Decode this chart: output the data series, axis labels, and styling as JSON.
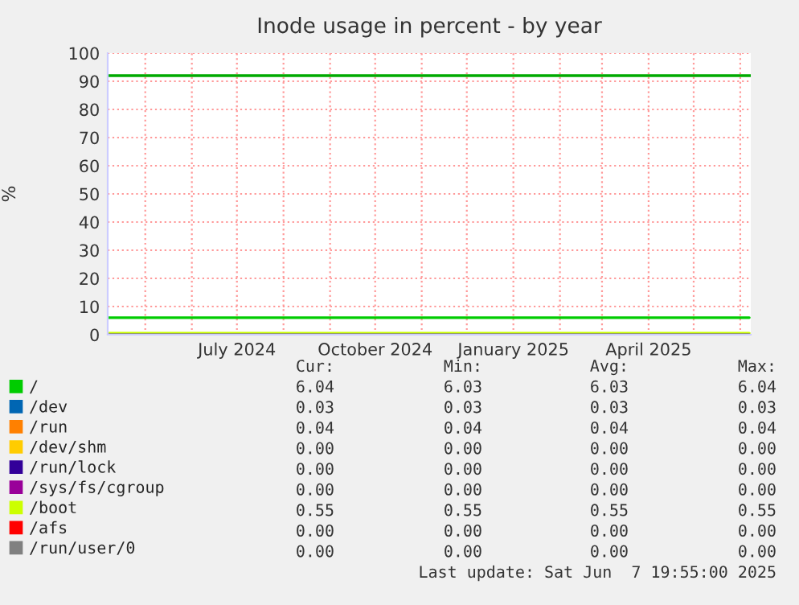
{
  "chart_data": {
    "type": "line",
    "title": "Inode usage in percent - by year",
    "ylabel": "%",
    "x": [
      "2024-04-06",
      "2025-06-07"
    ],
    "series": [
      {
        "name": "/",
        "color": "#00cc00",
        "values": [
          6.04,
          6.04
        ]
      },
      {
        "name": "/dev",
        "color": "#0066b3",
        "values": [
          null,
          null
        ]
      },
      {
        "name": "/run",
        "color": "#ff8000",
        "values": [
          null,
          null
        ]
      },
      {
        "name": "/dev/shm",
        "color": "#ffcc00",
        "values": [
          null,
          null
        ]
      },
      {
        "name": "/run/lock",
        "color": "#330099",
        "values": [
          null,
          null
        ]
      },
      {
        "name": "/sys/fs/cgroup",
        "color": "#990099",
        "values": [
          null,
          null
        ]
      },
      {
        "name": "/boot",
        "color": "#ccff00",
        "values": [
          0.55,
          0.55
        ]
      },
      {
        "name": "/afs",
        "color": "#ff0000",
        "values": [
          null,
          null
        ]
      },
      {
        "name": "/run/user/0",
        "color": "#808080",
        "values": [
          0,
          0
        ]
      }
    ],
    "ref_lines": [
      {
        "axis": "y",
        "value": 92,
        "label": null,
        "color": "#00aa00"
      }
    ],
    "xlim": [
      "2024-04-06",
      "2025-06-08"
    ],
    "xticks": [
      {
        "value": "2024-05-01",
        "label": null
      },
      {
        "value": "2024-06-01",
        "label": null
      },
      {
        "value": "2024-07-01",
        "label": "July 2024"
      },
      {
        "value": "2024-08-01",
        "label": null
      },
      {
        "value": "2024-09-01",
        "label": null
      },
      {
        "value": "2024-10-01",
        "label": "October 2024"
      },
      {
        "value": "2024-11-01",
        "label": null
      },
      {
        "value": "2024-12-01",
        "label": null
      },
      {
        "value": "2025-01-01",
        "label": "January 2025"
      },
      {
        "value": "2025-02-01",
        "label": null
      },
      {
        "value": "2025-03-01",
        "label": null
      },
      {
        "value": "2025-04-01",
        "label": "April 2025"
      },
      {
        "value": "2025-05-01",
        "label": null
      },
      {
        "value": "2025-06-01",
        "label": null
      }
    ],
    "ylim": [
      0,
      100
    ],
    "yticks": [
      0,
      10,
      20,
      30,
      40,
      50,
      60,
      70,
      80,
      90,
      100
    ],
    "grid": true,
    "legend": "bottom",
    "line_style": "solid",
    "marker": "none",
    "annotations": [
      "Cur:",
      "Min:",
      "Avg:",
      "Max:",
      "6.04",
      "6.03",
      "6.03",
      "6.04",
      "0.03",
      "0.03",
      "0.03",
      "0.03",
      "0.04",
      "0.04",
      "0.04",
      "0.04",
      "0.00",
      "0.00",
      "0.00",
      "0.00",
      "0.00",
      "0.00",
      "0.00",
      "0.00",
      "0.00",
      "0.00",
      "0.00",
      "0.00",
      "0.55",
      "0.55",
      "0.55",
      "0.55",
      "0.00",
      "0.00",
      "0.00",
      "0.00",
      "0.00",
      "0.00",
      "0.00",
      "0.00",
      "Last update: Sat Jun  7 19:55:00 2025"
    ]
  }
}
